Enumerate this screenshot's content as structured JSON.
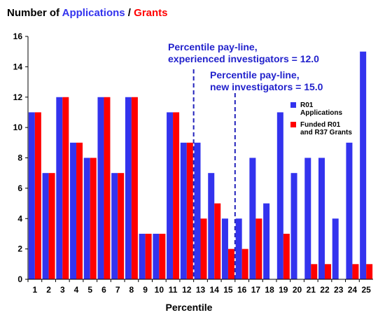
{
  "title": {
    "prefix": "Number of ",
    "series_a": "Applications",
    "sep": " / ",
    "series_b": "Grants"
  },
  "colors": {
    "applications": "#3333ee",
    "grants": "#ff0000",
    "paylines": "#2222bb",
    "annotation_text": "#2222cc"
  },
  "annotations": {
    "experienced_line1": "Percentile pay-line,",
    "experienced_line2": "experienced investigators = 12.0",
    "new_line1": "Percentile pay-line,",
    "new_line2": "new investigators = 15.0"
  },
  "legend": {
    "applications_line1": "R01",
    "applications_line2": "Applications",
    "grants_line1": "Funded R01",
    "grants_line2": "and R37 Grants"
  },
  "chart_data": {
    "type": "bar",
    "xlabel": "Percentile",
    "ylabel": "",
    "ylim": [
      0,
      16
    ],
    "yticks": [
      0,
      2,
      4,
      6,
      8,
      10,
      12,
      14,
      16
    ],
    "grid": false,
    "legend_position": "right",
    "categories": [
      "1",
      "2",
      "3",
      "4",
      "5",
      "6",
      "7",
      "8",
      "9",
      "10",
      "11",
      "12",
      "13",
      "14",
      "15",
      "16",
      "17",
      "18",
      "19",
      "20",
      "21",
      "22",
      "23",
      "24",
      "25"
    ],
    "series": [
      {
        "name": "R01 Applications",
        "values": [
          11,
          7,
          12,
          9,
          8,
          12,
          7,
          12,
          3,
          3,
          11,
          9,
          9,
          7,
          4,
          4,
          8,
          5,
          11,
          7,
          8,
          8,
          4,
          9,
          15
        ]
      },
      {
        "name": "Funded R01 and R37 Grants",
        "values": [
          11,
          7,
          12,
          9,
          8,
          12,
          7,
          12,
          3,
          3,
          11,
          9,
          4,
          5,
          2,
          2,
          4,
          0,
          3,
          0,
          1,
          1,
          0,
          1,
          1
        ]
      }
    ],
    "paylines": [
      12.0,
      15.0
    ]
  }
}
